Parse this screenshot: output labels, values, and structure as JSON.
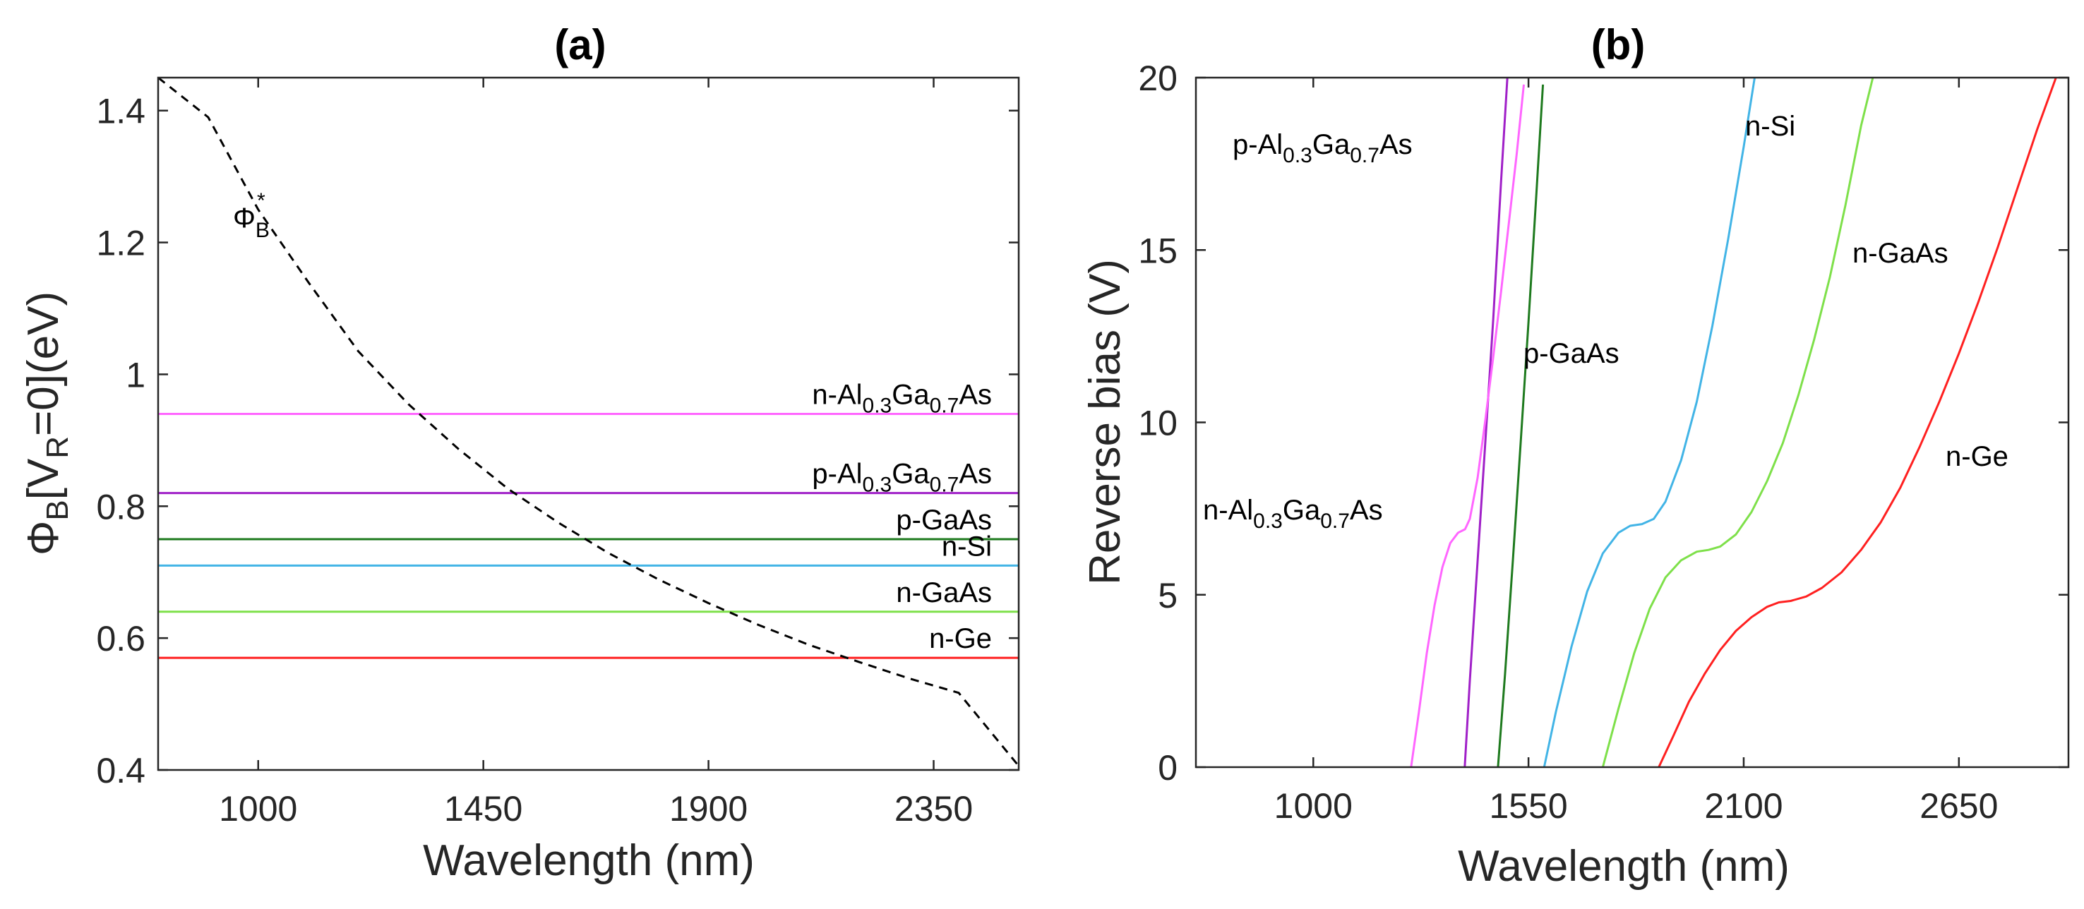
{
  "chart_data": [
    {
      "panel": "a",
      "type": "line",
      "title": "(a)",
      "xlabel": "Wavelength (nm)",
      "ylabel": {
        "pre": "Φ",
        "sub1": "B",
        "mid": "[V",
        "sub2": "R",
        "post": "=0](eV)"
      },
      "xlim": [
        800,
        2520
      ],
      "ylim": [
        0.4,
        1.45
      ],
      "xticks": [
        1000,
        1450,
        1900,
        2350
      ],
      "yticks": [
        0.4,
        0.6,
        0.8,
        1,
        1.2,
        1.4
      ],
      "ytick_labels": [
        "0.4",
        "0.6",
        "0.8",
        "1",
        "1.2",
        "1.4"
      ],
      "curve": {
        "name": "Φ_B*",
        "label": {
          "main": "Φ",
          "sub": "B",
          "sup": "*"
        },
        "style": "dashed",
        "color": "#000000",
        "x": [
          800,
          900,
          1000,
          1100,
          1200,
          1300,
          1400,
          1500,
          1600,
          1700,
          1800,
          1900,
          2000,
          2100,
          2200,
          2300,
          2400,
          2520
        ],
        "y": [
          1.45,
          1.39,
          1.25,
          1.14,
          1.035,
          0.955,
          0.887,
          0.826,
          0.775,
          0.729,
          0.689,
          0.653,
          0.62,
          0.59,
          0.564,
          0.539,
          0.517,
          0.406
        ]
      },
      "series": [
        {
          "name": "n-Al0.3Ga0.7As",
          "label": [
            "n-Al",
            "0.3",
            "Ga",
            "0.7",
            "As"
          ],
          "value": 0.94,
          "color": "#ff66ff"
        },
        {
          "name": "p-Al0.3Ga0.7As",
          "label": [
            "p-Al",
            "0.3",
            "Ga",
            "0.7",
            "As"
          ],
          "value": 0.82,
          "color": "#a020c8"
        },
        {
          "name": "p-GaAs",
          "label": [
            "p-GaAs"
          ],
          "value": 0.75,
          "color": "#1e7a1e"
        },
        {
          "name": "n-Si",
          "label": [
            "n-Si"
          ],
          "value": 0.71,
          "color": "#42b4e6"
        },
        {
          "name": "n-GaAs",
          "label": [
            "n-GaAs"
          ],
          "value": 0.64,
          "color": "#7ee04a"
        },
        {
          "name": "n-Ge",
          "label": [
            "n-Ge"
          ],
          "value": 0.57,
          "color": "#ff2020"
        }
      ]
    },
    {
      "panel": "b",
      "type": "line",
      "title": "(b)",
      "xlabel": "Wavelength (nm)",
      "ylabel": "Reverse bias (V)",
      "xlim": [
        700,
        2930
      ],
      "ylim": [
        0,
        20
      ],
      "xticks": [
        1000,
        1550,
        2100,
        2650
      ],
      "yticks": [
        0,
        5,
        10,
        15,
        20
      ],
      "series": [
        {
          "name": "p-Al0.3Ga0.7As",
          "label": [
            "p-Al",
            "0.3",
            "Ga",
            "0.7",
            "As"
          ],
          "color": "#a020c8",
          "x": [
            1387,
            1400,
            1420,
            1440,
            1460,
            1480,
            1496
          ],
          "y": [
            0,
            2.5,
            6,
            9.5,
            13,
            17,
            20
          ]
        },
        {
          "name": "n-Al0.3Ga0.7As",
          "label": [
            "n-Al",
            "0.3",
            "Ga",
            "0.7",
            "As"
          ],
          "color": "#ff66ff",
          "x": [
            1250,
            1270,
            1290,
            1310,
            1330,
            1350,
            1370,
            1388,
            1400,
            1420,
            1440,
            1460,
            1480,
            1500,
            1520,
            1538
          ],
          "y": [
            0,
            1.6,
            3.3,
            4.7,
            5.8,
            6.5,
            6.8,
            6.9,
            7.2,
            8.4,
            10.1,
            11.9,
            13.8,
            15.8,
            17.8,
            19.8
          ]
        },
        {
          "name": "p-GaAs",
          "label": [
            "p-GaAs"
          ],
          "color": "#1e7a1e",
          "x": [
            1472,
            1490,
            1510,
            1530,
            1550,
            1570,
            1587
          ],
          "y": [
            0,
            2.7,
            6,
            9.4,
            12.9,
            16.6,
            19.8
          ]
        },
        {
          "name": "n-Si",
          "label": [
            "n-Si"
          ],
          "color": "#42b4e6",
          "x": [
            1590,
            1620,
            1660,
            1700,
            1740,
            1780,
            1810,
            1840,
            1870,
            1900,
            1940,
            1980,
            2020,
            2060,
            2100,
            2128
          ],
          "y": [
            0,
            1.6,
            3.5,
            5.1,
            6.2,
            6.8,
            7,
            7.05,
            7.2,
            7.7,
            8.9,
            10.6,
            12.8,
            15.3,
            18,
            20
          ]
        },
        {
          "name": "n-GaAs",
          "label": [
            "n-GaAs"
          ],
          "color": "#7ee04a",
          "x": [
            1740,
            1780,
            1820,
            1860,
            1900,
            1940,
            1980,
            2010,
            2040,
            2080,
            2120,
            2160,
            2200,
            2240,
            2280,
            2320,
            2360,
            2400,
            2430
          ],
          "y": [
            0,
            1.7,
            3.3,
            4.6,
            5.5,
            6,
            6.25,
            6.3,
            6.4,
            6.75,
            7.4,
            8.3,
            9.4,
            10.8,
            12.4,
            14.2,
            16.3,
            18.6,
            20
          ]
        },
        {
          "name": "n-Ge",
          "label": [
            "n-Ge"
          ],
          "color": "#ff2020",
          "x": [
            1883,
            1920,
            1960,
            2000,
            2040,
            2080,
            2120,
            2160,
            2190,
            2220,
            2260,
            2300,
            2350,
            2400,
            2450,
            2500,
            2550,
            2600,
            2650,
            2700,
            2750,
            2800,
            2850,
            2898
          ],
          "y": [
            0,
            0.9,
            1.9,
            2.7,
            3.4,
            3.95,
            4.35,
            4.65,
            4.78,
            4.82,
            4.95,
            5.2,
            5.65,
            6.3,
            7.1,
            8.1,
            9.3,
            10.6,
            12,
            13.5,
            15.1,
            16.8,
            18.5,
            20
          ]
        }
      ]
    }
  ]
}
